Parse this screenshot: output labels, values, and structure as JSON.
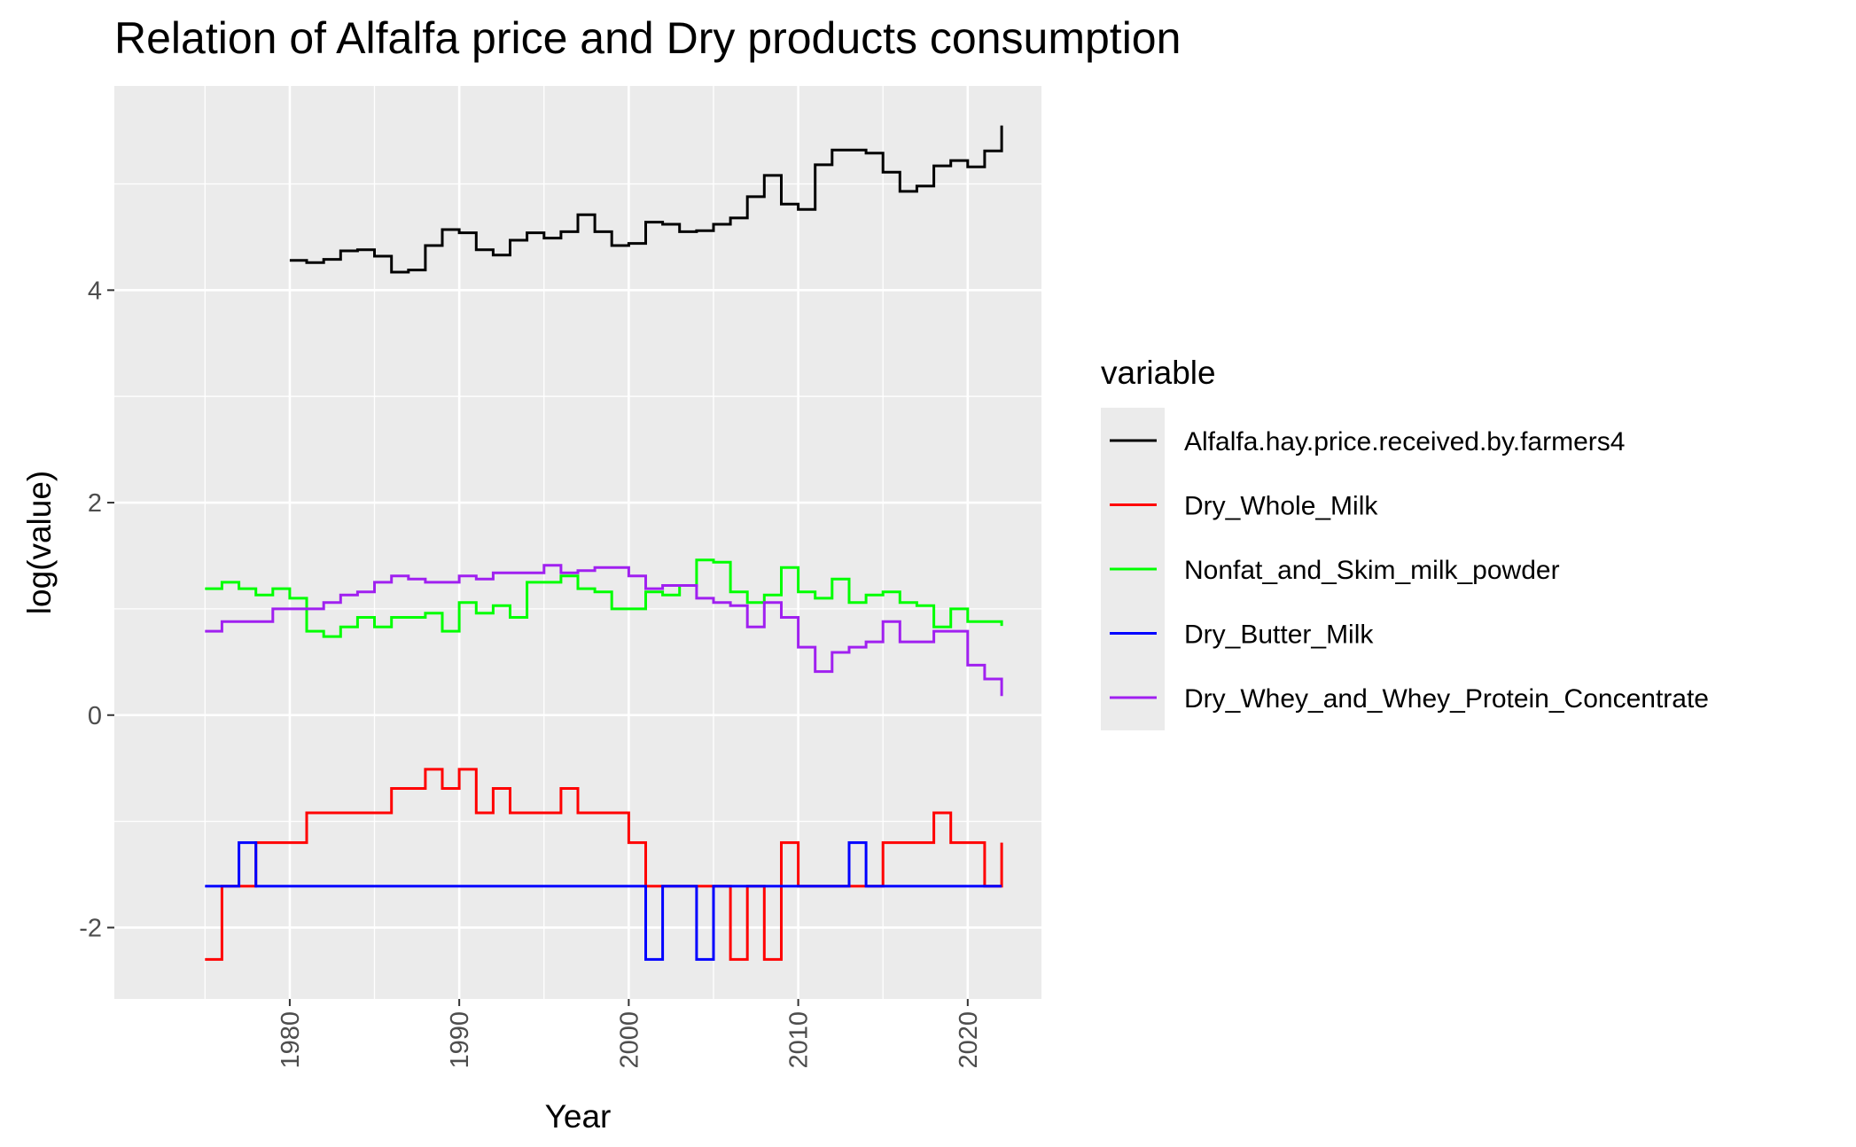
{
  "chart_data": {
    "type": "line",
    "style": "step",
    "title": "Relation of Alfalfa price and Dry products consumption",
    "xlabel": "Year",
    "ylabel": "log(value)",
    "xlim": [
      1969.65,
      2024.35
    ],
    "ylim": [
      -2.672,
      5.922
    ],
    "x_ticks": [
      1980,
      1990,
      2000,
      2010,
      2020
    ],
    "x_tick_labels": [
      "1980",
      "1990",
      "2000",
      "2010",
      "2020"
    ],
    "y_ticks": [
      -2,
      0,
      2,
      4
    ],
    "y_tick_labels": [
      "-2",
      "0",
      "2",
      "4"
    ],
    "grid": true,
    "legend": {
      "title": "variable",
      "position": "right"
    },
    "series": [
      {
        "name": "Alfalfa.hay.price.received.by.farmers4",
        "color": "#000000",
        "x": [
          1980,
          1981,
          1982,
          1983,
          1984,
          1985,
          1986,
          1987,
          1988,
          1989,
          1990,
          1991,
          1992,
          1993,
          1994,
          1995,
          1996,
          1997,
          1998,
          1999,
          2000,
          2001,
          2002,
          2003,
          2004,
          2005,
          2006,
          2007,
          2008,
          2009,
          2010,
          2011,
          2012,
          2013,
          2014,
          2015,
          2016,
          2017,
          2018,
          2019,
          2020,
          2021,
          2022
        ],
        "values": [
          4.28,
          4.26,
          4.29,
          4.37,
          4.38,
          4.32,
          4.17,
          4.19,
          4.42,
          4.57,
          4.54,
          4.38,
          4.33,
          4.47,
          4.54,
          4.49,
          4.55,
          4.71,
          4.55,
          4.42,
          4.44,
          4.64,
          4.62,
          4.55,
          4.56,
          4.62,
          4.68,
          4.88,
          5.08,
          4.81,
          4.76,
          5.18,
          5.32,
          5.32,
          5.29,
          5.11,
          4.93,
          4.98,
          5.17,
          5.22,
          5.16,
          5.31,
          5.55
        ]
      },
      {
        "name": "Dry_Whole_Milk",
        "color": "#ff0000",
        "x": [
          1975,
          1976,
          1977,
          1978,
          1979,
          1980,
          1981,
          1982,
          1983,
          1984,
          1985,
          1986,
          1987,
          1988,
          1989,
          1990,
          1991,
          1992,
          1993,
          1994,
          1995,
          1996,
          1997,
          1998,
          1999,
          2000,
          2001,
          2002,
          2003,
          2004,
          2005,
          2006,
          2007,
          2008,
          2009,
          2010,
          2011,
          2012,
          2013,
          2014,
          2015,
          2016,
          2017,
          2018,
          2019,
          2020,
          2021,
          2022
        ],
        "values": [
          -2.3,
          -1.61,
          -1.61,
          -1.2,
          -1.2,
          -1.2,
          -0.92,
          -0.92,
          -0.92,
          -0.92,
          -0.92,
          -0.69,
          -0.69,
          -0.51,
          -0.69,
          -0.51,
          -0.92,
          -0.69,
          -0.92,
          -0.92,
          -0.92,
          -0.69,
          -0.92,
          -0.92,
          -0.92,
          -1.2,
          -1.61,
          -1.61,
          -1.61,
          -1.61,
          -1.61,
          -2.3,
          -1.61,
          -2.3,
          -1.2,
          -1.61,
          -1.61,
          -1.61,
          -1.61,
          -1.61,
          -1.2,
          -1.2,
          -1.2,
          -0.92,
          -1.2,
          -1.2,
          -1.61,
          -1.2
        ]
      },
      {
        "name": "Nonfat_and_Skim_milk_powder",
        "color": "#00ff00",
        "x": [
          1975,
          1976,
          1977,
          1978,
          1979,
          1980,
          1981,
          1982,
          1983,
          1984,
          1985,
          1986,
          1987,
          1988,
          1989,
          1990,
          1991,
          1992,
          1993,
          1994,
          1995,
          1996,
          1997,
          1998,
          1999,
          2000,
          2001,
          2002,
          2003,
          2004,
          2005,
          2006,
          2007,
          2008,
          2009,
          2010,
          2011,
          2012,
          2013,
          2014,
          2015,
          2016,
          2017,
          2018,
          2019,
          2020,
          2021,
          2022
        ],
        "values": [
          1.19,
          1.25,
          1.19,
          1.13,
          1.19,
          1.1,
          0.79,
          0.74,
          0.83,
          0.92,
          0.83,
          0.92,
          0.92,
          0.96,
          0.79,
          1.06,
          0.96,
          1.03,
          0.92,
          1.25,
          1.25,
          1.31,
          1.19,
          1.16,
          1.0,
          1.0,
          1.16,
          1.13,
          1.22,
          1.46,
          1.44,
          1.16,
          1.06,
          1.13,
          1.39,
          1.16,
          1.1,
          1.28,
          1.06,
          1.13,
          1.16,
          1.06,
          1.03,
          0.83,
          1.0,
          0.88,
          0.88,
          0.84
        ]
      },
      {
        "name": "Dry_Butter_Milk",
        "color": "#0000ff",
        "x": [
          1975,
          1976,
          1977,
          1978,
          1979,
          1980,
          1981,
          1982,
          1983,
          1984,
          1985,
          1986,
          1987,
          1988,
          1989,
          1990,
          1991,
          1992,
          1993,
          1994,
          1995,
          1996,
          1997,
          1998,
          1999,
          2000,
          2001,
          2002,
          2003,
          2004,
          2005,
          2006,
          2007,
          2008,
          2009,
          2010,
          2011,
          2012,
          2013,
          2014,
          2015,
          2016,
          2017,
          2018,
          2019,
          2020,
          2021,
          2022
        ],
        "values": [
          -1.61,
          -1.61,
          -1.2,
          -1.61,
          -1.61,
          -1.61,
          -1.61,
          -1.61,
          -1.61,
          -1.61,
          -1.61,
          -1.61,
          -1.61,
          -1.61,
          -1.61,
          -1.61,
          -1.61,
          -1.61,
          -1.61,
          -1.61,
          -1.61,
          -1.61,
          -1.61,
          -1.61,
          -1.61,
          -1.61,
          -2.3,
          -1.61,
          -1.61,
          -2.3,
          -1.61,
          -1.61,
          -1.61,
          -1.61,
          -1.61,
          -1.61,
          -1.61,
          -1.61,
          -1.2,
          -1.61,
          -1.61,
          -1.61,
          -1.61,
          -1.61,
          -1.61,
          -1.61,
          -1.61,
          -1.61
        ]
      },
      {
        "name": "Dry_Whey_and_Whey_Protein_Concentrate",
        "color": "#a020f0",
        "x": [
          1975,
          1976,
          1977,
          1978,
          1979,
          1980,
          1981,
          1982,
          1983,
          1984,
          1985,
          1986,
          1987,
          1988,
          1989,
          1990,
          1991,
          1992,
          1993,
          1994,
          1995,
          1996,
          1997,
          1998,
          1999,
          2000,
          2001,
          2002,
          2003,
          2004,
          2005,
          2006,
          2007,
          2008,
          2009,
          2010,
          2011,
          2012,
          2013,
          2014,
          2015,
          2016,
          2017,
          2018,
          2019,
          2020,
          2021,
          2022
        ],
        "values": [
          0.79,
          0.88,
          0.88,
          0.88,
          1.0,
          1.0,
          1.0,
          1.06,
          1.13,
          1.16,
          1.25,
          1.31,
          1.28,
          1.25,
          1.25,
          1.31,
          1.28,
          1.34,
          1.34,
          1.34,
          1.41,
          1.34,
          1.36,
          1.39,
          1.39,
          1.31,
          1.19,
          1.22,
          1.22,
          1.1,
          1.06,
          1.03,
          0.83,
          1.06,
          0.92,
          0.64,
          0.41,
          0.59,
          0.64,
          0.69,
          0.88,
          0.69,
          0.69,
          0.79,
          0.79,
          0.47,
          0.34,
          0.18
        ]
      }
    ]
  }
}
